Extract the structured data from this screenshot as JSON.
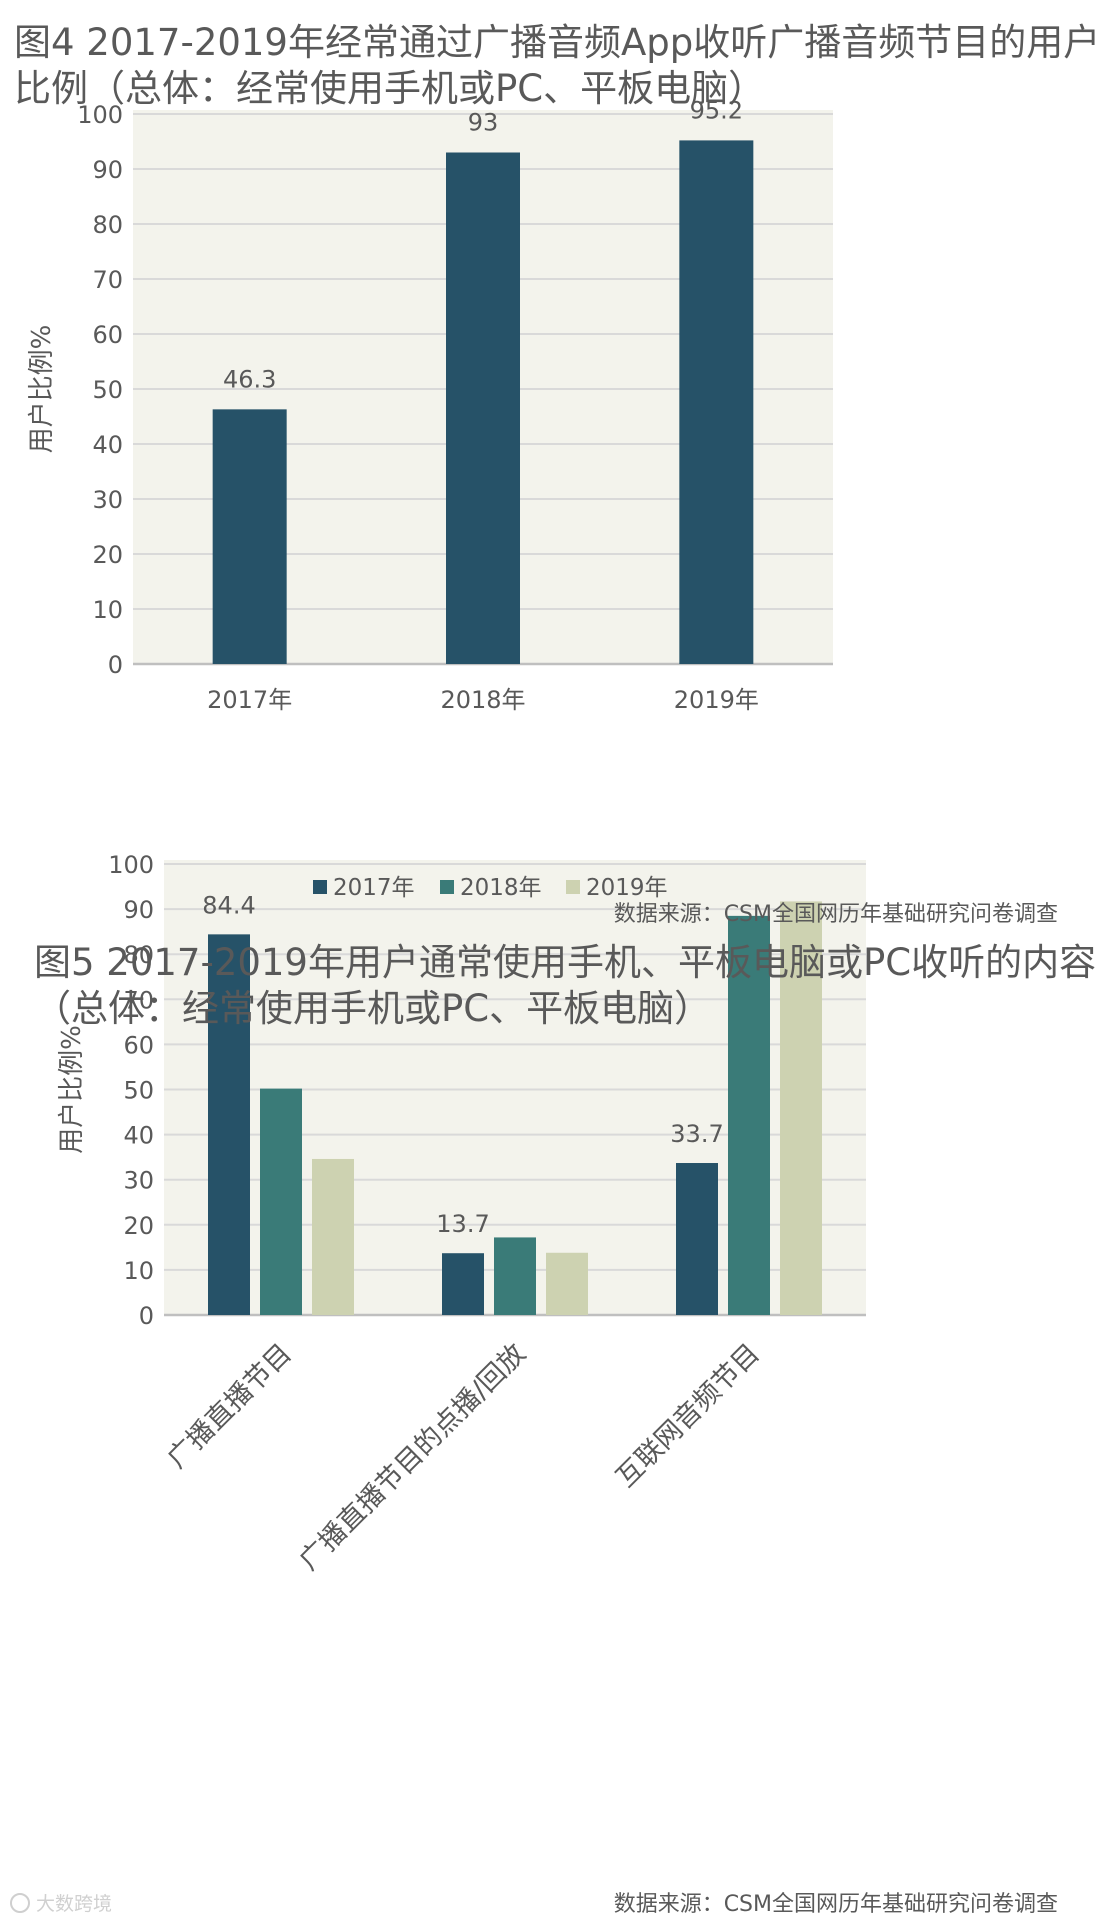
{
  "colors": {
    "plot_bg": "#F3F3EC",
    "grid": "#D9D9D9",
    "axis": "#BFBFBF",
    "text": "#595959",
    "series_2017": "#265268",
    "series_2018": "#3A7B78",
    "series_2019": "#CDD2B1"
  },
  "chart_data": [
    {
      "type": "bar",
      "title": "图4 2017-2019年经常通过广播音频App收听广播音频节目的用户比例（总体：经常使用手机或PC、平板电脑）",
      "title_lines": [
        "图4 2017-2019年经常通过广播音频App收听广播音频节目的用户",
        "比例（总体：经常使用手机或PC、平板电脑）"
      ],
      "ylabel": "用户比例%",
      "ylim": [
        0,
        100
      ],
      "yticks": [
        "0",
        "10",
        "20",
        "30",
        "40",
        "50",
        "60",
        "70",
        "80",
        "90",
        "100"
      ],
      "grid": true,
      "categories": [
        "2017年",
        "2018年",
        "2019年"
      ],
      "values": [
        46.3,
        93,
        95.2
      ],
      "data_labels": [
        "46.3",
        "93",
        "95.2"
      ],
      "source": "数据来源：CSM全国网历年基础研究问卷调查"
    },
    {
      "type": "bar",
      "title": "图5 2017-2019年用户通常使用手机、平板电脑或PC收听的内容（总体：经常使用手机或PC、平板电脑）",
      "title_lines": [
        "图5 2017-2019年用户通常使用手机、平板电脑或PC收听的内容",
        "（总体：经常使用手机或PC、平板电脑）"
      ],
      "ylabel": "用户比例%",
      "ylim": [
        0,
        100
      ],
      "yticks": [
        "0",
        "10",
        "20",
        "30",
        "40",
        "50",
        "60",
        "70",
        "80",
        "90",
        "100"
      ],
      "grid": true,
      "legend_position": "top",
      "categories": [
        "广播直播节目",
        "广播直播节目的点播/回放",
        "互联网音频节目"
      ],
      "series": [
        {
          "name": "2017年",
          "values": [
            84.4,
            13.7,
            33.7
          ],
          "data_labels": [
            "84.4",
            "13.7",
            "33.7"
          ]
        },
        {
          "name": "2018年",
          "values": [
            50.2,
            17.2,
            88.5
          ],
          "data_labels": [
            "",
            "",
            ""
          ]
        },
        {
          "name": "2019年",
          "values": [
            34.6,
            13.8,
            91.7
          ],
          "data_labels": [
            "",
            "",
            ""
          ]
        }
      ],
      "source": "数据来源：CSM全国网历年基础研究问卷调查"
    }
  ],
  "watermark": "大数跨境"
}
